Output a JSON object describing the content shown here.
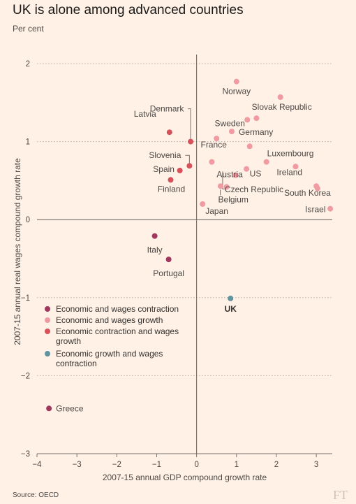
{
  "title": "UK is alone among advanced countries",
  "subtitle": "Per cent",
  "source": "Source: OECD",
  "logo": "FT",
  "chart_data": {
    "type": "scatter",
    "title": "UK is alone among advanced countries",
    "xlabel": "2007-15 annual GDP compound growth rate",
    "ylabel": "2007-15 annual real wages compound growth rate",
    "xlim": [
      -4,
      3.4
    ],
    "ylim": [
      -3,
      2.1
    ],
    "xticks": [
      -4,
      -3,
      -2,
      -1,
      0,
      1,
      2,
      3
    ],
    "yticks": [
      2,
      1,
      0,
      -1,
      -2,
      -3
    ],
    "colors": {
      "contraction_both": "#a0385e",
      "growth_both": "#f09aa2",
      "econ_contraction_wage_growth": "#d5525a",
      "econ_growth_wage_contraction": "#5f94a0"
    },
    "legend": [
      {
        "key": "contraction_both",
        "label": [
          "Economic and wages contraction"
        ]
      },
      {
        "key": "growth_both",
        "label": [
          "Economic and wages growth"
        ]
      },
      {
        "key": "econ_contraction_wage_growth",
        "label": [
          "Economic contraction and wages",
          "growth"
        ]
      },
      {
        "key": "econ_growth_wage_contraction",
        "label": [
          "Economic growth and wages",
          "contraction"
        ]
      }
    ],
    "points": [
      {
        "name": "Norway",
        "x": 1.0,
        "y": 1.77,
        "cat": "growth_both"
      },
      {
        "name": "Slovak Republic",
        "x": 2.1,
        "y": 1.57,
        "cat": "growth_both"
      },
      {
        "name": "Sweden",
        "x": 1.27,
        "y": 1.28,
        "cat": "growth_both"
      },
      {
        "name": "",
        "x": 1.5,
        "y": 1.3,
        "cat": "growth_both"
      },
      {
        "name": "Germany",
        "x": 0.88,
        "y": 1.13,
        "cat": "growth_both"
      },
      {
        "name": "France",
        "x": 0.5,
        "y": 1.04,
        "cat": "growth_both"
      },
      {
        "name": "",
        "x": 1.33,
        "y": 0.94,
        "cat": "growth_both"
      },
      {
        "name": "Luxembourg",
        "x": 1.75,
        "y": 0.74,
        "cat": "growth_both"
      },
      {
        "name": "",
        "x": 0.38,
        "y": 0.74,
        "cat": "growth_both"
      },
      {
        "name": "Austria",
        "x": 1.25,
        "y": 0.65,
        "cat": "growth_both"
      },
      {
        "name": "US",
        "x": 0.98,
        "y": 0.57,
        "cat": "growth_both"
      },
      {
        "name": "Ireland",
        "x": 2.48,
        "y": 0.68,
        "cat": "growth_both"
      },
      {
        "name": "Czech Republic",
        "x": 0.6,
        "y": 0.43,
        "cat": "growth_both"
      },
      {
        "name": "Belgium",
        "x": 0.75,
        "y": 0.42,
        "cat": "growth_both"
      },
      {
        "name": "South Korea",
        "x": 3.0,
        "y": 0.43,
        "cat": "growth_both"
      },
      {
        "name": "",
        "x": 3.03,
        "y": 0.4,
        "cat": "growth_both"
      },
      {
        "name": "Japan",
        "x": 0.15,
        "y": 0.2,
        "cat": "growth_both"
      },
      {
        "name": "Israel",
        "x": 3.35,
        "y": 0.14,
        "cat": "growth_both"
      },
      {
        "name": "Denmark",
        "x": -0.15,
        "y": 1.0,
        "cat": "econ_contraction_wage_growth"
      },
      {
        "name": "Latvia",
        "x": -0.68,
        "y": 1.12,
        "cat": "econ_contraction_wage_growth"
      },
      {
        "name": "Slovenia",
        "x": -0.18,
        "y": 0.69,
        "cat": "econ_contraction_wage_growth"
      },
      {
        "name": "Spain",
        "x": -0.42,
        "y": 0.63,
        "cat": "econ_contraction_wage_growth"
      },
      {
        "name": "Finland",
        "x": -0.65,
        "y": 0.51,
        "cat": "econ_contraction_wage_growth"
      },
      {
        "name": "Italy",
        "x": -1.05,
        "y": -0.21,
        "cat": "contraction_both"
      },
      {
        "name": "Portugal",
        "x": -0.7,
        "y": -0.51,
        "cat": "contraction_both"
      },
      {
        "name": "Greece",
        "x": -3.7,
        "y": -2.42,
        "cat": "contraction_both"
      },
      {
        "name": "UK",
        "x": 0.85,
        "y": -1.01,
        "cat": "econ_growth_wage_contraction"
      }
    ]
  }
}
